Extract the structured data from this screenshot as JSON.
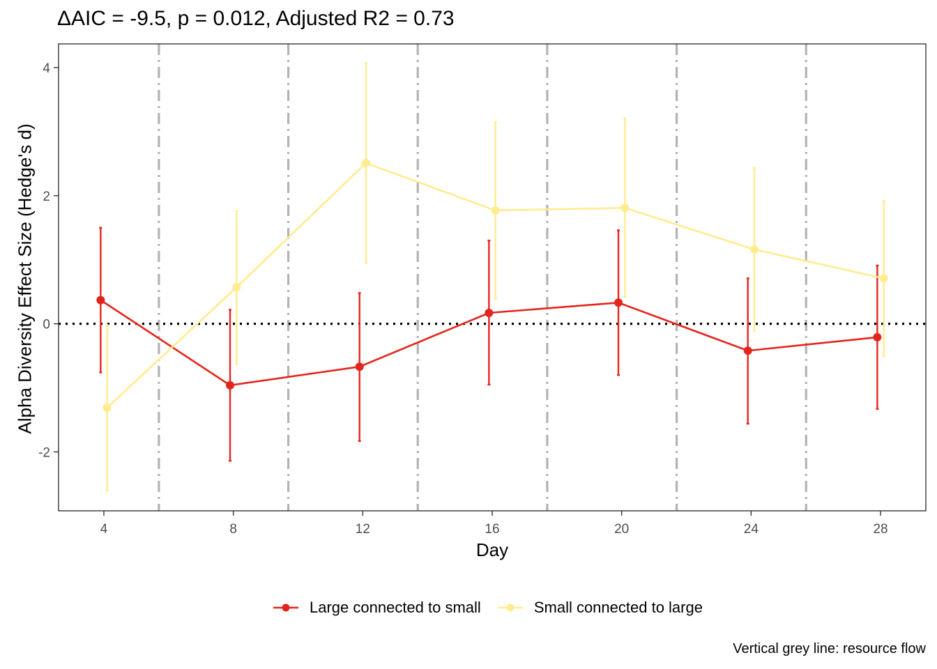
{
  "chart_data": {
    "type": "line",
    "title": "ΔAIC = -9.5, p = 0.012, Adjusted R2 = 0.73",
    "xlabel": "Day",
    "ylabel": "Alpha Diversity Effect Size (Hedge's d)",
    "caption": "Vertical grey line: resource flow",
    "xlim": [
      2.6,
      29.4
    ],
    "ylim": [
      -2.92,
      4.37
    ],
    "x_ticks": [
      4,
      8,
      12,
      16,
      20,
      24,
      28
    ],
    "y_ticks": [
      -2,
      0,
      2,
      4
    ],
    "reference_line_y": 0,
    "resource_flow_days": [
      5.7,
      9.7,
      13.7,
      17.7,
      21.7,
      25.7
    ],
    "grid": false,
    "legend_position": "bottom",
    "series": [
      {
        "name": "Large connected to small",
        "color": "#E3251E",
        "x": [
          3.9,
          7.9,
          11.9,
          15.9,
          19.9,
          23.9,
          27.9
        ],
        "y": [
          0.37,
          -0.96,
          -0.67,
          0.17,
          0.33,
          -0.42,
          -0.21
        ],
        "ymin": [
          -0.76,
          -2.14,
          -1.83,
          -0.95,
          -0.8,
          -1.56,
          -1.33
        ],
        "ymax": [
          1.5,
          0.22,
          0.48,
          1.3,
          1.46,
          0.71,
          0.91
        ]
      },
      {
        "name": "Small connected to large",
        "color": "#FFEC8E",
        "x": [
          4.1,
          8.1,
          12.1,
          16.1,
          20.1,
          24.1,
          28.1
        ],
        "y": [
          -1.31,
          0.57,
          2.51,
          1.77,
          1.81,
          1.16,
          0.71
        ],
        "ymin": [
          -2.6,
          -0.63,
          0.95,
          0.39,
          0.42,
          -0.11,
          -0.51
        ],
        "ymax": [
          -0.02,
          1.76,
          4.07,
          3.15,
          3.21,
          2.43,
          1.92
        ]
      }
    ]
  }
}
